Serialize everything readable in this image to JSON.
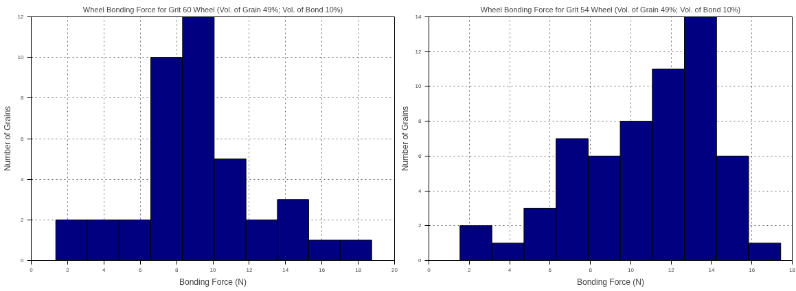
{
  "chart_data": [
    {
      "type": "histogram",
      "title": "Wheel Bonding Force for Grit 60 Wheel (Vol. of Grain 49%; Vol. of Bond 10%)",
      "xlabel": "Bonding Force (N)",
      "ylabel": "Number of Grains",
      "bins": [
        1.35,
        3.09,
        4.83,
        6.58,
        8.33,
        10.07,
        11.82,
        13.55,
        15.27,
        17.0,
        18.74
      ],
      "values": [
        2,
        2,
        2,
        10,
        12,
        5,
        2,
        3,
        1,
        1
      ],
      "color": "#000080",
      "xlim": [
        0,
        20
      ],
      "xticks": [
        0,
        2,
        4,
        6,
        8,
        10,
        12,
        14,
        16,
        18,
        20
      ],
      "ylim": [
        0,
        12
      ],
      "yticks": [
        0,
        2,
        4,
        6,
        8,
        10,
        12
      ],
      "grid": true,
      "line_style": "dotted"
    },
    {
      "type": "histogram",
      "title": "Wheel Bonding Force for Grit 54 Wheel (Vol. of Grain 49%; Vol. of Bond 10%)",
      "xlabel": "Bonding Force (N)",
      "ylabel": "Number of Grains",
      "bins": [
        1.54,
        3.12,
        4.71,
        6.3,
        7.89,
        9.48,
        11.07,
        12.66,
        14.25,
        15.84,
        17.43
      ],
      "values": [
        2,
        1,
        3,
        7,
        6,
        8,
        11,
        14,
        6,
        1
      ],
      "color": "#000080",
      "xlim": [
        0,
        18
      ],
      "xticks": [
        0,
        2,
        4,
        6,
        8,
        10,
        12,
        14,
        16,
        18
      ],
      "ylim": [
        0,
        14
      ],
      "yticks": [
        0,
        2,
        4,
        6,
        8,
        10,
        12,
        14
      ],
      "grid": true,
      "line_style": "dotted"
    }
  ]
}
